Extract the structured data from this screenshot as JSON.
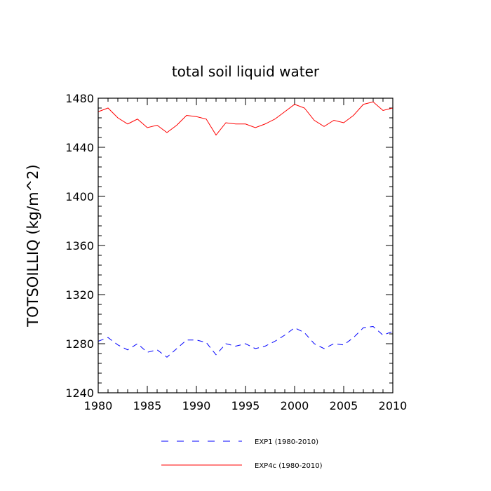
{
  "chart_data": {
    "type": "line",
    "title": "total soil liquid water",
    "xlabel": "",
    "ylabel": "TOTSOILLIQ  (kg/m^2)",
    "xlim": [
      1980,
      2010
    ],
    "ylim": [
      1240,
      1480
    ],
    "xticks": [
      1980,
      1985,
      1990,
      1995,
      2000,
      2005,
      2010
    ],
    "yticks": [
      1240,
      1280,
      1320,
      1360,
      1400,
      1440,
      1480
    ],
    "x": [
      1980,
      1981,
      1982,
      1983,
      1984,
      1985,
      1986,
      1987,
      1988,
      1989,
      1990,
      1991,
      1992,
      1993,
      1994,
      1995,
      1996,
      1997,
      1998,
      1999,
      2000,
      2001,
      2002,
      2003,
      2004,
      2005,
      2006,
      2007,
      2008,
      2009,
      2010
    ],
    "series": [
      {
        "name": "EXP1 (1980-2010)",
        "color": "#0000ff",
        "style": "dashed",
        "values": [
          1282,
          1285,
          1279,
          1275,
          1280,
          1273,
          1275,
          1269,
          1276,
          1283,
          1283,
          1281,
          1271,
          1280,
          1278,
          1280,
          1276,
          1278,
          1282,
          1287,
          1293,
          1289,
          1280,
          1276,
          1280,
          1279,
          1285,
          1293,
          1294,
          1287,
          1290
        ]
      },
      {
        "name": "EXP4c (1980-2010)",
        "color": "#ff0000",
        "style": "solid",
        "values": [
          1469,
          1472,
          1464,
          1459,
          1463,
          1456,
          1458,
          1452,
          1458,
          1466,
          1465,
          1463,
          1450,
          1460,
          1459,
          1459,
          1456,
          1459,
          1463,
          1469,
          1475,
          1472,
          1462,
          1457,
          1462,
          1460,
          1466,
          1475,
          1477,
          1470,
          1472
        ]
      }
    ],
    "legend_position": "bottom"
  }
}
